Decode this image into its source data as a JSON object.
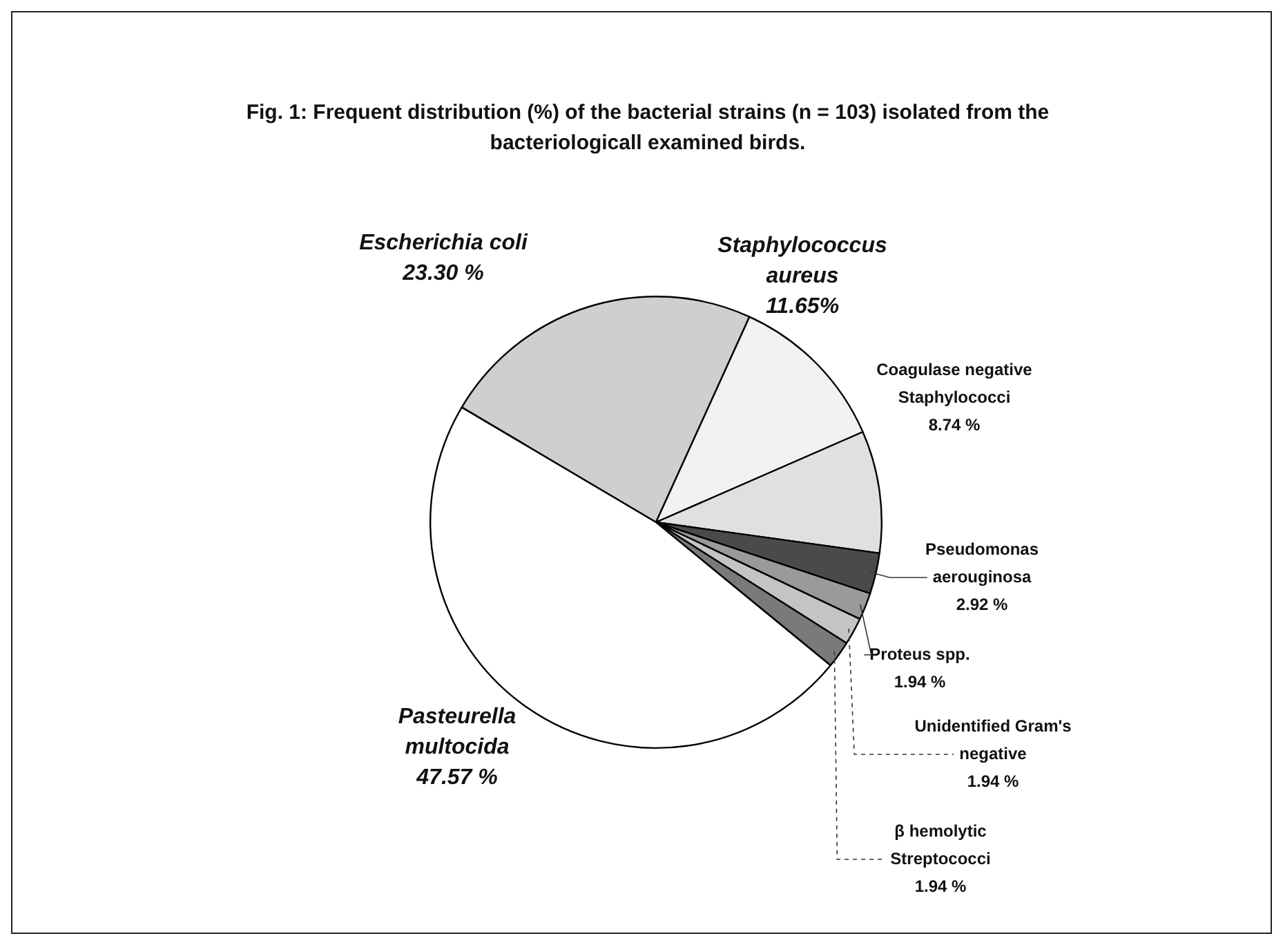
{
  "chart_data": {
    "type": "pie",
    "title": "Fig. 1: Frequent distribution (%) of the bacterial strains (n = 103) isolated from the bacteriologicall examined birds.",
    "categories": [
      "Escherichia coli",
      "Staphylococcus aureus",
      "Coagulase negative Staphylococci",
      "Pseudomonas aerouginosa",
      "Proteus spp.",
      "Unidentified Gram's negative",
      "β hemolytic Streptococci",
      "Pasteurella multocida"
    ],
    "values": [
      23.3,
      11.65,
      8.74,
      2.92,
      1.94,
      1.94,
      1.94,
      47.57
    ],
    "value_labels": [
      "23.30 %",
      "11.65%",
      "8.74 %",
      "2.92 %",
      "1.94 %",
      "1.94 %",
      "1.94 %",
      "47.57 %"
    ],
    "colors": [
      "#cfcfcf",
      "#f2f2f2",
      "#e0e0e0",
      "#4a4a4a",
      "#9a9a9a",
      "#c4c4c4",
      "#7a7a7a",
      "#ffffff"
    ],
    "legend": false
  }
}
